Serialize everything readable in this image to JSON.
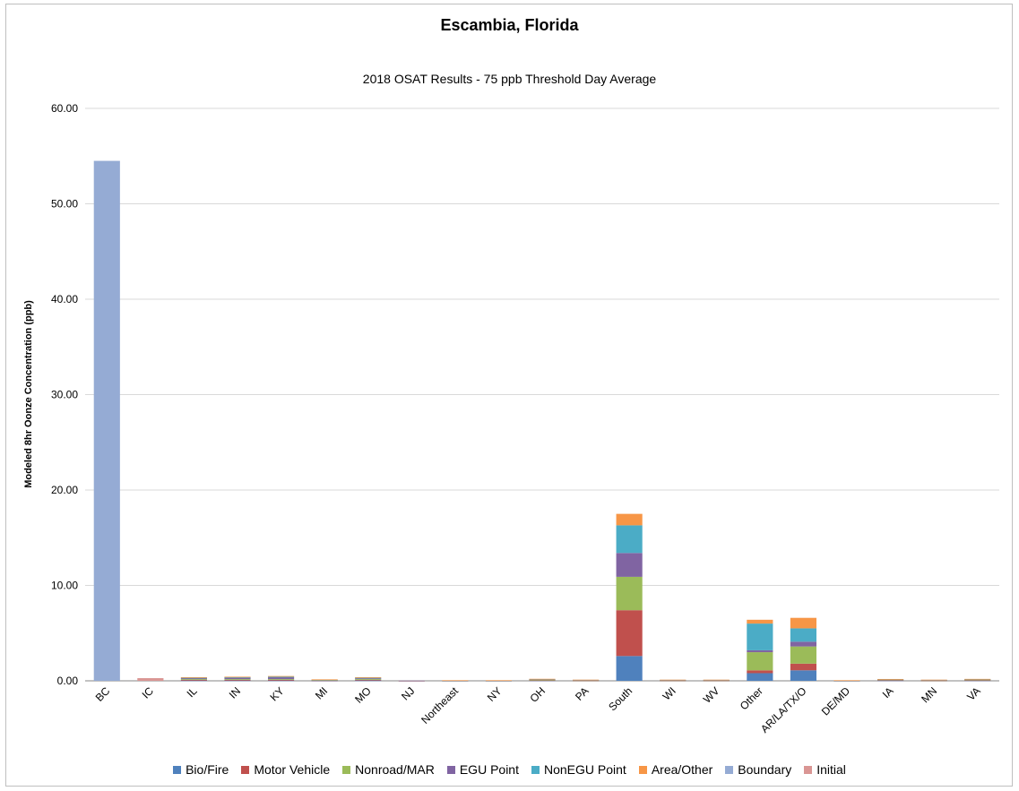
{
  "chart_data": {
    "type": "bar",
    "stacked": true,
    "title": "Escambia, Florida",
    "subtitle": "2018 OSAT Results - 75 ppb Threshold Day Average",
    "xlabel": "",
    "ylabel": "Modeled 8hr Oonze Concentration (ppb)",
    "ylim": [
      0,
      60
    ],
    "yticks": [
      "0.00",
      "10.00",
      "20.00",
      "30.00",
      "40.00",
      "50.00",
      "60.00"
    ],
    "grid": true,
    "legend_position": "bottom",
    "categories": [
      "BC",
      "IC",
      "IL",
      "IN",
      "KY",
      "MI",
      "MO",
      "NJ",
      "Northeast",
      "NY",
      "OH",
      "PA",
      "South",
      "WI",
      "WV",
      "Other",
      "AR/LA/TX/O",
      "DE/MD",
      "IA",
      "MN",
      "VA"
    ],
    "series": [
      {
        "name": "Bio/Fire",
        "color": "#4f81bd",
        "values": [
          0,
          0,
          0.05,
          0.05,
          0.05,
          0.02,
          0.05,
          0,
          0.01,
          0.01,
          0.03,
          0.02,
          2.6,
          0.02,
          0.02,
          0.8,
          1.1,
          0.01,
          0.03,
          0.02,
          0.03
        ]
      },
      {
        "name": "Motor Vehicle",
        "color": "#c0504d",
        "values": [
          0,
          0,
          0.05,
          0.05,
          0.05,
          0.03,
          0.06,
          0.01,
          0.01,
          0.01,
          0.03,
          0.02,
          4.8,
          0.02,
          0.02,
          0.3,
          0.7,
          0.01,
          0.03,
          0.02,
          0.03
        ]
      },
      {
        "name": "Nonroad/MAR",
        "color": "#9bbb59",
        "values": [
          0,
          0,
          0.08,
          0.08,
          0.08,
          0.03,
          0.08,
          0.01,
          0.01,
          0.01,
          0.04,
          0.02,
          3.5,
          0.02,
          0.02,
          1.9,
          1.8,
          0.01,
          0.04,
          0.02,
          0.04
        ]
      },
      {
        "name": "EGU Point",
        "color": "#8064a2",
        "values": [
          0,
          0,
          0.1,
          0.15,
          0.2,
          0.03,
          0.08,
          0.01,
          0.01,
          0.01,
          0.05,
          0.02,
          2.5,
          0.02,
          0.02,
          0.2,
          0.5,
          0.01,
          0.03,
          0.02,
          0.04
        ]
      },
      {
        "name": "NonEGU Point",
        "color": "#4bacc6",
        "values": [
          0,
          0,
          0.05,
          0.05,
          0.05,
          0.02,
          0.06,
          0,
          0.01,
          0.01,
          0.03,
          0.02,
          2.9,
          0.02,
          0.02,
          2.8,
          1.4,
          0.01,
          0.03,
          0.02,
          0.03
        ]
      },
      {
        "name": "Area/Other",
        "color": "#f79646",
        "values": [
          0,
          0,
          0.05,
          0.05,
          0.07,
          0.02,
          0.05,
          0,
          0.01,
          0.01,
          0.03,
          0.02,
          1.2,
          0.02,
          0.02,
          0.4,
          1.1,
          0.01,
          0.03,
          0.02,
          0.03
        ]
      },
      {
        "name": "Boundary",
        "color": "#95abd4",
        "values": [
          54.5,
          0,
          0,
          0,
          0,
          0,
          0,
          0,
          0,
          0,
          0,
          0,
          0,
          0,
          0,
          0,
          0,
          0,
          0,
          0,
          0
        ]
      },
      {
        "name": "Initial",
        "color": "#da9694",
        "values": [
          0,
          0.28,
          0,
          0,
          0,
          0,
          0,
          0,
          0,
          0,
          0,
          0,
          0,
          0,
          0,
          0,
          0,
          0,
          0,
          0,
          0
        ]
      }
    ]
  }
}
